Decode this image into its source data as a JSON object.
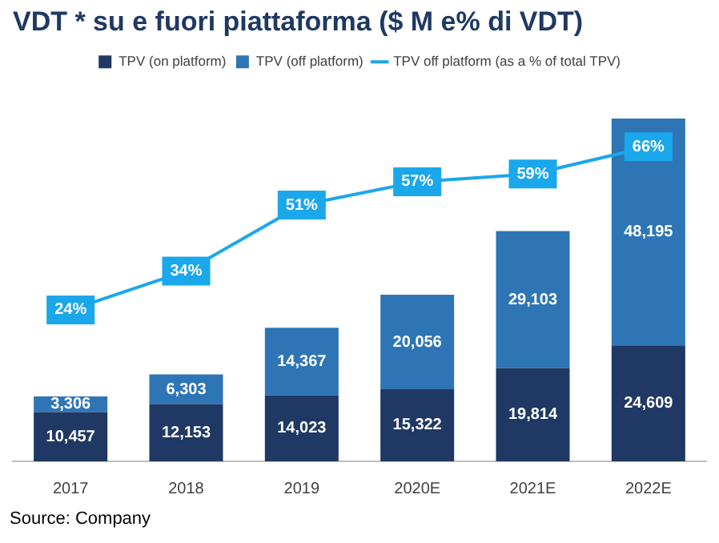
{
  "chart_data": {
    "type": "bar",
    "title": "VDT * su e fuori piattaforma ($ M e% di VDT)",
    "categories": [
      "2017",
      "2018",
      "2019",
      "2020E",
      "2021E",
      "2022E"
    ],
    "stacked": true,
    "legend": "top",
    "grid": false,
    "tick_labels": "x",
    "annotations": [
      "Source: Company"
    ],
    "series": [
      {
        "name": "TPV (on platform)",
        "color": "#1f3864",
        "values": [
          10457,
          12153,
          14023,
          15322,
          19814,
          24609
        ],
        "value_labels": [
          "10,457",
          "12,153",
          "14,023",
          "15,322",
          "19,814",
          "24,609"
        ]
      },
      {
        "name": "TPV (off platform)",
        "color": "#2e75b6",
        "values": [
          3306,
          6303,
          14367,
          20056,
          29103,
          48195
        ],
        "value_labels": [
          "3,306",
          "6,303",
          "14,367",
          "20,056",
          "29,103",
          "48,195"
        ]
      },
      {
        "name": "TPV off platform (as a % of total TPV)",
        "type": "line",
        "axis": "y2",
        "color": "#1aa7ec",
        "marker": "square",
        "values": [
          24,
          34,
          51,
          57,
          59,
          66
        ],
        "value_labels": [
          "24%",
          "34%",
          "51%",
          "57%",
          "59%",
          "66%"
        ]
      }
    ]
  }
}
